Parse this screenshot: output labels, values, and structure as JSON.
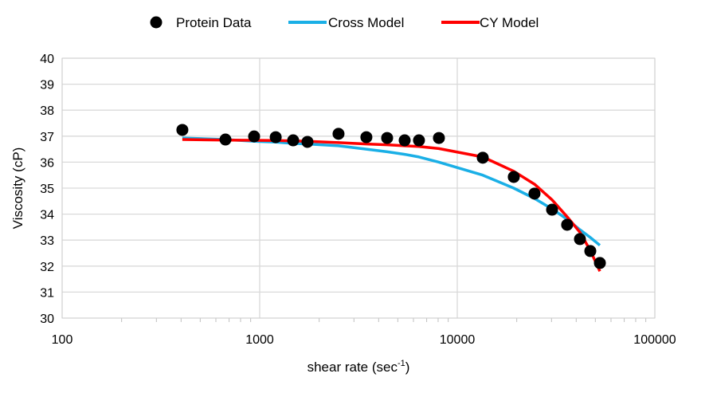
{
  "chart_data": {
    "type": "scatter",
    "xlabel": "shear rate (sec",
    "xlabel_sup": "-1",
    "xlabel_end": ")",
    "ylabel": "Viscosity (cP)",
    "xscale": "log",
    "xlim": [
      100,
      100000
    ],
    "ylim": [
      30,
      40
    ],
    "xticks": [
      "100",
      "1000",
      "10000",
      "100000"
    ],
    "yticks": [
      "30",
      "31",
      "32",
      "33",
      "34",
      "35",
      "36",
      "37",
      "38",
      "39",
      "40"
    ],
    "grid": true,
    "legend_position": "top",
    "x": [
      406,
      671,
      937,
      1205,
      1477,
      1745,
      2506,
      3467,
      4416,
      5417,
      6400,
      8075,
      13460,
      19320,
      24600,
      30190,
      35980,
      41780,
      47140,
      52710
    ],
    "series": [
      {
        "name": "Protein Data",
        "kind": "markers",
        "color": "#000000",
        "values": [
          37.24,
          36.87,
          36.99,
          36.96,
          36.84,
          36.78,
          37.09,
          36.96,
          36.93,
          36.84,
          36.84,
          36.93,
          36.17,
          35.43,
          34.79,
          34.17,
          33.59,
          33.04,
          32.58,
          32.12
        ]
      },
      {
        "name": "Cross Model",
        "kind": "line",
        "color": "#1AAFE6",
        "values": [
          36.93,
          36.87,
          36.8,
          36.77,
          36.72,
          36.7,
          36.63,
          36.5,
          36.4,
          36.3,
          36.2,
          36.0,
          35.5,
          35.0,
          34.6,
          34.2,
          33.8,
          33.4,
          33.1,
          32.8
        ]
      },
      {
        "name": "CY Model",
        "kind": "line",
        "color": "#FF0000",
        "values": [
          36.87,
          36.85,
          36.84,
          36.83,
          36.82,
          36.8,
          36.75,
          36.7,
          36.67,
          36.63,
          36.6,
          36.52,
          36.2,
          35.65,
          35.15,
          34.55,
          33.9,
          33.3,
          32.6,
          31.8
        ]
      }
    ]
  }
}
